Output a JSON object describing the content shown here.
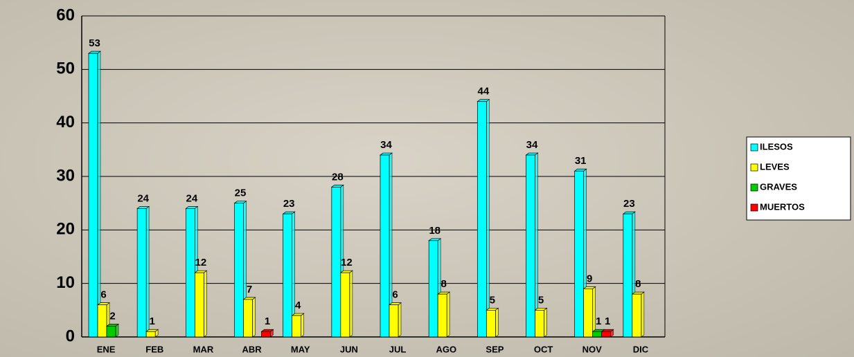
{
  "chart_data": {
    "type": "bar",
    "categories": [
      "ENE",
      "FEB",
      "MAR",
      "ABR",
      "MAY",
      "JUN",
      "JUL",
      "AGO",
      "SEP",
      "OCT",
      "NOV",
      "DIC"
    ],
    "series": [
      {
        "name": "ILESOS",
        "color": "#00ffff",
        "values": [
          53,
          24,
          24,
          25,
          23,
          28,
          34,
          18,
          44,
          34,
          31,
          23
        ]
      },
      {
        "name": "LEVES",
        "color": "#ffff00",
        "values": [
          6,
          1,
          12,
          7,
          4,
          12,
          6,
          8,
          5,
          5,
          9,
          8
        ]
      },
      {
        "name": "GRAVES",
        "color": "#00cc00",
        "values": [
          2,
          0,
          0,
          0,
          0,
          0,
          0,
          0,
          0,
          0,
          1,
          0
        ]
      },
      {
        "name": "MUERTOS",
        "color": "#ff0000",
        "values": [
          0,
          0,
          0,
          1,
          0,
          0,
          0,
          0,
          0,
          0,
          1,
          0
        ]
      }
    ],
    "ylim": [
      0,
      60
    ],
    "yticks": [
      0,
      10,
      20,
      30,
      40,
      50,
      60
    ],
    "grid": true,
    "legend": "right"
  }
}
